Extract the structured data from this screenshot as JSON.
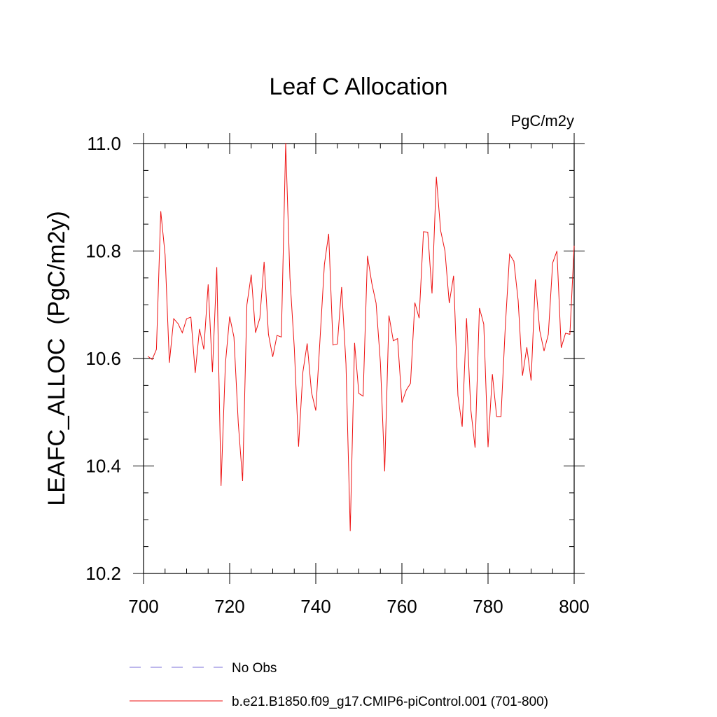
{
  "chart_data": {
    "type": "line",
    "title": "Leaf C Allocation",
    "units": "PgC/m2y",
    "xlabel": "",
    "ylabel": "LEAFC_ALLOC  (PgC/m2y)",
    "xlim": [
      700,
      800
    ],
    "ylim": [
      10.2,
      11.0
    ],
    "xticks": [
      700,
      720,
      740,
      760,
      780,
      800
    ],
    "xtick_labels": [
      "700",
      "720",
      "740",
      "760",
      "780",
      "800"
    ],
    "yticks": [
      10.2,
      10.4,
      10.6,
      10.8,
      11.0
    ],
    "ytick_labels": [
      "10.2",
      "10.4",
      "10.6",
      "10.8",
      "11.0"
    ],
    "x_minor_step": 5,
    "y_minor_step": 0.05,
    "grid": false,
    "legend_position": "bottom",
    "legend": [
      {
        "label": "No Obs",
        "style": "dashed",
        "color": "#7b6fd8"
      },
      {
        "label": "b.e21.B1850.f09_g17.CMIP6-piControl.001 (701-800)",
        "style": "solid",
        "color": "#ee1111"
      }
    ],
    "series": [
      {
        "name": "b.e21.B1850.f09_g17.CMIP6-piControl.001 (701-800)",
        "color": "#ee1111",
        "x": [
          701,
          702,
          703,
          704,
          705,
          706,
          707,
          708,
          709,
          710,
          711,
          712,
          713,
          714,
          715,
          716,
          717,
          718,
          719,
          720,
          721,
          722,
          723,
          724,
          725,
          726,
          727,
          728,
          729,
          730,
          731,
          732,
          733,
          734,
          735,
          736,
          737,
          738,
          739,
          740,
          741,
          742,
          743,
          744,
          745,
          746,
          747,
          748,
          749,
          750,
          751,
          752,
          753,
          754,
          755,
          756,
          757,
          758,
          759,
          760,
          761,
          762,
          763,
          764,
          765,
          766,
          767,
          768,
          769,
          770,
          771,
          772,
          773,
          774,
          775,
          776,
          777,
          778,
          779,
          780,
          781,
          782,
          783,
          784,
          785,
          786,
          787,
          788,
          789,
          790,
          791,
          792,
          793,
          794,
          795,
          796,
          797,
          798,
          799,
          800
        ],
        "values": [
          10.604,
          10.598,
          10.617,
          10.874,
          10.793,
          10.592,
          10.674,
          10.665,
          10.648,
          10.674,
          10.677,
          10.573,
          10.655,
          10.617,
          10.738,
          10.575,
          10.77,
          10.363,
          10.59,
          10.678,
          10.64,
          10.48,
          10.372,
          10.7,
          10.756,
          10.648,
          10.675,
          10.78,
          10.645,
          10.603,
          10.643,
          10.64,
          11.001,
          10.75,
          10.62,
          10.436,
          10.575,
          10.628,
          10.537,
          10.503,
          10.637,
          10.775,
          10.832,
          10.625,
          10.627,
          10.733,
          10.59,
          10.279,
          10.629,
          10.535,
          10.53,
          10.791,
          10.74,
          10.703,
          10.592,
          10.39,
          10.68,
          10.633,
          10.637,
          10.518,
          10.541,
          10.554,
          10.704,
          10.675,
          10.836,
          10.835,
          10.721,
          10.938,
          10.838,
          10.8,
          10.703,
          10.754,
          10.531,
          10.473,
          10.675,
          10.505,
          10.434,
          10.694,
          10.664,
          10.435,
          10.571,
          10.492,
          10.492,
          10.658,
          10.794,
          10.781,
          10.708,
          10.568,
          10.621,
          10.559,
          10.747,
          10.652,
          10.614,
          10.645,
          10.778,
          10.8,
          10.62,
          10.647,
          10.645,
          10.81
        ]
      }
    ]
  }
}
